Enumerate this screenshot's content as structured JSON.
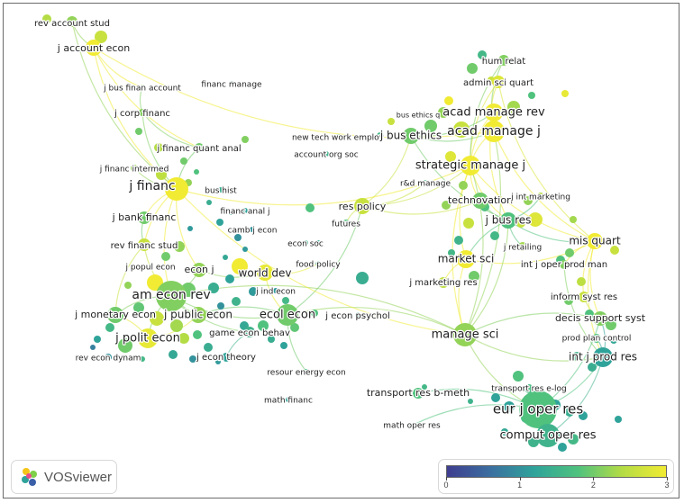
{
  "app": "VOSviewer",
  "view": "overlay-visualization",
  "legend": {
    "min": "0",
    "ticks": [
      "0",
      "1",
      "2",
      "3"
    ],
    "colors": [
      "#3f3d8f",
      "#3b6fa0",
      "#2fa39a",
      "#50c27e",
      "#b4dc45",
      "#f1eb33"
    ]
  },
  "nodes": [
    {
      "label": "rev account stud",
      "score": 2.2
    },
    {
      "label": "j account econ",
      "score": 3.0
    },
    {
      "label": "j bus finan account",
      "score": 2.1
    },
    {
      "label": "financ manage",
      "score": 1.3
    },
    {
      "label": "j corp financ",
      "score": 2.1
    },
    {
      "label": "j financ quant anal",
      "score": 2.0
    },
    {
      "label": "j financ intermed",
      "score": 2.2
    },
    {
      "label": "j financ",
      "score": 3.0
    },
    {
      "label": "bus hist",
      "score": 1.4
    },
    {
      "label": "financ anal j",
      "score": 1.2
    },
    {
      "label": "j bank financ",
      "score": 2.0
    },
    {
      "label": "camb j econ",
      "score": 1.0
    },
    {
      "label": "rev financ stud",
      "score": 2.6
    },
    {
      "label": "j popul econ",
      "score": 1.6
    },
    {
      "label": "econ j",
      "score": 2.2
    },
    {
      "label": "world dev",
      "score": 2.9
    },
    {
      "label": "econ soc",
      "score": 1.5
    },
    {
      "label": "food policy",
      "score": 1.4
    },
    {
      "label": "am econ rev",
      "score": 2.1
    },
    {
      "label": "j ind econ",
      "score": 1.1
    },
    {
      "label": "j monetary econ",
      "score": 2.0
    },
    {
      "label": "j public econ",
      "score": 2.2
    },
    {
      "label": "ecol econ",
      "score": 2.0
    },
    {
      "label": "j econ psychol",
      "score": 1.3
    },
    {
      "label": "game econ behav",
      "score": 1.5
    },
    {
      "label": "j polit econ",
      "score": 2.9
    },
    {
      "label": "rev econ dynam",
      "score": 1.0
    },
    {
      "label": "j econ theory",
      "score": 1.2
    },
    {
      "label": "resour energy econ",
      "score": 1.6
    },
    {
      "label": "math financ",
      "score": 1.2
    },
    {
      "label": "res policy",
      "score": 2.6
    },
    {
      "label": "futures",
      "score": 1.8
    },
    {
      "label": "new tech work employ",
      "score": 1.6
    },
    {
      "label": "account org soc",
      "score": 1.5
    },
    {
      "label": "bus ethics q",
      "score": 1.2
    },
    {
      "label": "j bus ethics",
      "score": 2.0
    },
    {
      "label": "hum relat",
      "score": 2.1
    },
    {
      "label": "admin sci quart",
      "score": 2.8
    },
    {
      "label": "acad manage rev",
      "score": 3.0
    },
    {
      "label": "acad manage j",
      "score": 3.0
    },
    {
      "label": "strategic manage j",
      "score": 3.0
    },
    {
      "label": "r&d manage",
      "score": 1.8
    },
    {
      "label": "technovation",
      "score": 2.0
    },
    {
      "label": "j int marketing",
      "score": 2.4
    },
    {
      "label": "j bus res",
      "score": 1.8
    },
    {
      "label": "j retailing",
      "score": 2.3
    },
    {
      "label": "market sci",
      "score": 3.0
    },
    {
      "label": "mis quart",
      "score": 3.0
    },
    {
      "label": "int j oper prod man",
      "score": 2.1
    },
    {
      "label": "j marketing res",
      "score": 2.5
    },
    {
      "label": "inform syst res",
      "score": 2.6
    },
    {
      "label": "decis support syst",
      "score": 2.1
    },
    {
      "label": "manage sci",
      "score": 2.2
    },
    {
      "label": "prod plan control",
      "score": 1.8
    },
    {
      "label": "int j prod res",
      "score": 1.2
    },
    {
      "label": "transport res e-log",
      "score": 1.7
    },
    {
      "label": "transport res b-meth",
      "score": 1.8
    },
    {
      "label": "eur j oper res",
      "score": 1.8
    },
    {
      "label": "math oper res",
      "score": 1.1
    },
    {
      "label": "comput oper res",
      "score": 1.5
    }
  ]
}
